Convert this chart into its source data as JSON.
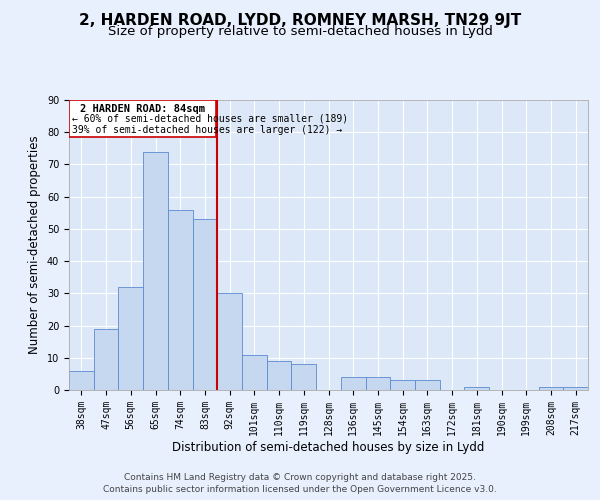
{
  "title": "2, HARDEN ROAD, LYDD, ROMNEY MARSH, TN29 9JT",
  "subtitle": "Size of property relative to semi-detached houses in Lydd",
  "xlabel": "Distribution of semi-detached houses by size in Lydd",
  "ylabel": "Number of semi-detached properties",
  "bar_labels": [
    "38sqm",
    "47sqm",
    "56sqm",
    "65sqm",
    "74sqm",
    "83sqm",
    "92sqm",
    "101sqm",
    "110sqm",
    "119sqm",
    "128sqm",
    "136sqm",
    "145sqm",
    "154sqm",
    "163sqm",
    "172sqm",
    "181sqm",
    "190sqm",
    "199sqm",
    "208sqm",
    "217sqm"
  ],
  "bar_values": [
    6,
    19,
    32,
    74,
    56,
    53,
    30,
    11,
    9,
    8,
    0,
    4,
    4,
    3,
    3,
    0,
    1,
    0,
    0,
    1,
    1
  ],
  "bar_color": "#c5d8f0",
  "bar_edge_color": "#5b8bd0",
  "vline_x": 5.5,
  "vline_color": "#cc0000",
  "annotation_title": "2 HARDEN ROAD: 84sqm",
  "annotation_line1": "← 60% of semi-detached houses are smaller (189)",
  "annotation_line2": "39% of semi-detached houses are larger (122) →",
  "annotation_box_color": "#cc0000",
  "ylim": [
    0,
    90
  ],
  "yticks": [
    0,
    10,
    20,
    30,
    40,
    50,
    60,
    70,
    80,
    90
  ],
  "footer_line1": "Contains HM Land Registry data © Crown copyright and database right 2025.",
  "footer_line2": "Contains public sector information licensed under the Open Government Licence v3.0.",
  "bg_color": "#e8f0fe",
  "plot_bg_color": "#dce8f8",
  "grid_color": "#ffffff",
  "title_fontsize": 11,
  "subtitle_fontsize": 9.5,
  "axis_label_fontsize": 8.5,
  "tick_fontsize": 7,
  "footer_fontsize": 6.5,
  "annotation_title_fontsize": 7.5,
  "annotation_text_fontsize": 7
}
